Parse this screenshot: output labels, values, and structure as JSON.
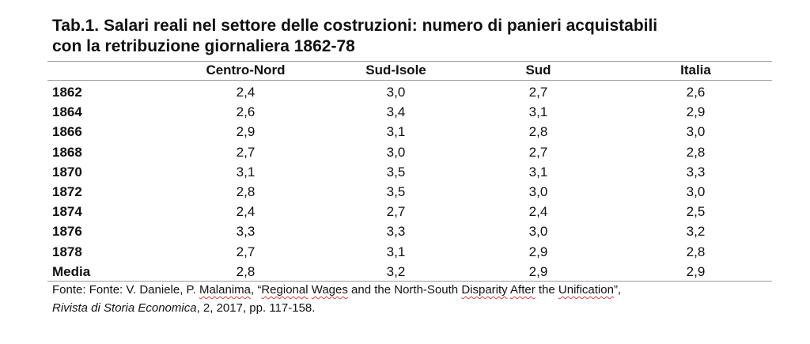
{
  "title": {
    "line1": "Tab.1. Salari reali nel settore delle costruzioni: numero di panieri acquistabili",
    "line2": "con la retribuzione giornaliera 1862-78"
  },
  "table": {
    "columns": [
      "",
      "Centro-Nord",
      "Sud-Isole",
      "Sud",
      "Italia"
    ],
    "rows": [
      {
        "label": "1862",
        "values": [
          "2,4",
          "3,0",
          "2,7",
          "2,6"
        ]
      },
      {
        "label": "1864",
        "values": [
          "2,6",
          "3,4",
          "3,1",
          "2,9"
        ]
      },
      {
        "label": "1866",
        "values": [
          "2,9",
          "3,1",
          "2,8",
          "3,0"
        ]
      },
      {
        "label": "1868",
        "values": [
          "2,7",
          "3,0",
          "2,7",
          "2,8"
        ]
      },
      {
        "label": "1870",
        "values": [
          "3,1",
          "3,5",
          "3,1",
          "3,3"
        ]
      },
      {
        "label": "1872",
        "values": [
          "2,8",
          "3,5",
          "3,0",
          "3,0"
        ]
      },
      {
        "label": "1874",
        "values": [
          "2,4",
          "2,7",
          "2,4",
          "2,5"
        ]
      },
      {
        "label": "1876",
        "values": [
          "3,3",
          "3,3",
          "3,0",
          "3,2"
        ]
      },
      {
        "label": "1878",
        "values": [
          "2,7",
          "3,1",
          "2,9",
          "2,8"
        ]
      },
      {
        "label": "Media",
        "values": [
          "2,8",
          "3,2",
          "2,9",
          "2,9"
        ]
      }
    ]
  },
  "source": {
    "p1": "Fonte: Fonte: V. Daniele, P. ",
    "w1": "Malanima",
    "p2": ", “",
    "w2": "Regional",
    "p3": " ",
    "w3": "Wages",
    "p4": " and the North-South ",
    "w4": "Disparity",
    "p5": " ",
    "w5": "After",
    "p6": " the ",
    "w6": "Unification",
    "p7": "”,",
    "journal": "Rivista di Storia Economica",
    "p8": ", 2, 2017, pp. 117-158."
  }
}
